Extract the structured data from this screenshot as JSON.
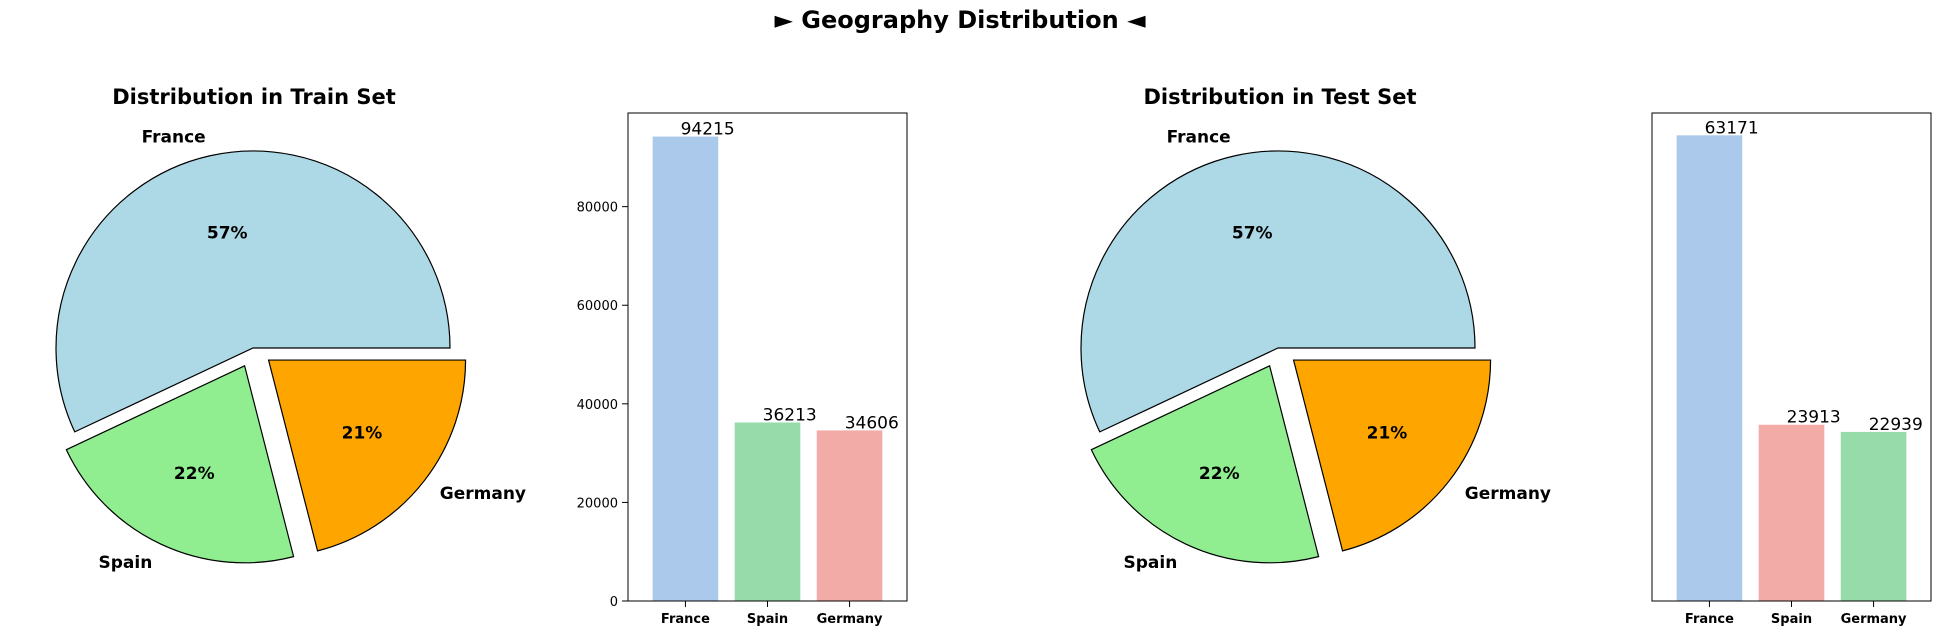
{
  "figure": {
    "title": "► Geography Distribution ◄"
  },
  "chart_data": [
    {
      "type": "pie",
      "title": "Distribution in Train Set",
      "categories": [
        "France",
        "Spain",
        "Germany"
      ],
      "values": [
        57,
        22,
        21
      ],
      "value_labels": [
        "57%",
        "22%",
        "21%"
      ],
      "colors": [
        "#add8e6",
        "#90ee90",
        "#ffa500"
      ],
      "explode": [
        0,
        0.1,
        0.1
      ]
    },
    {
      "type": "bar",
      "title": "",
      "categories": [
        "France",
        "Spain",
        "Germany"
      ],
      "values": [
        94215,
        36213,
        34606
      ],
      "data_labels": [
        "94215",
        "36213",
        "34606"
      ],
      "colors": [
        "#abc9ea",
        "#98dbab",
        "#f3aba8"
      ],
      "ylim": [
        0,
        99000
      ],
      "yticks": [
        0,
        20000,
        40000,
        60000,
        80000
      ],
      "ytick_labels": [
        "0",
        "20000",
        "40000",
        "60000",
        "80000"
      ],
      "show_yticks": true,
      "xlabel": "",
      "ylabel": ""
    },
    {
      "type": "pie",
      "title": "Distribution in Test Set",
      "categories": [
        "France",
        "Spain",
        "Germany"
      ],
      "values": [
        57,
        22,
        21
      ],
      "value_labels": [
        "57%",
        "22%",
        "21%"
      ],
      "colors": [
        "#add8e6",
        "#90ee90",
        "#ffa500"
      ],
      "explode": [
        0,
        0.1,
        0.1
      ]
    },
    {
      "type": "bar",
      "title": "",
      "categories": [
        "France",
        "Spain",
        "Germany"
      ],
      "values": [
        63171,
        23913,
        22939
      ],
      "data_labels": [
        "63171",
        "23913",
        "22939"
      ],
      "colors": [
        "#abc9ea",
        "#f3aba8",
        "#98dbab"
      ],
      "ylim": [
        0,
        66200
      ],
      "yticks": [],
      "ytick_labels": [],
      "show_yticks": false,
      "xlabel": "",
      "ylabel": ""
    }
  ]
}
